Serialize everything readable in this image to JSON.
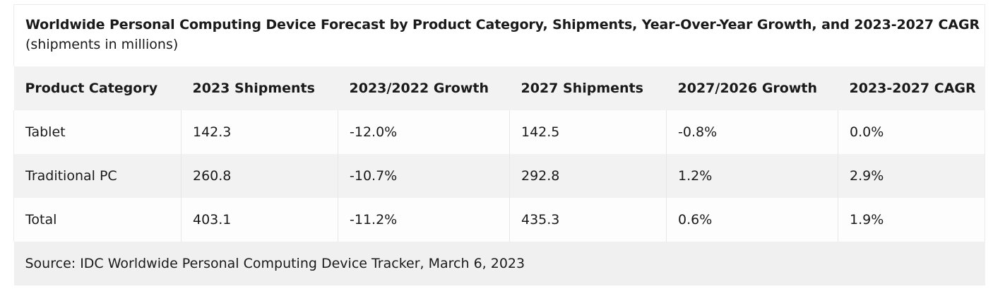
{
  "table": {
    "title": "Worldwide Personal Computing Device Forecast by Product Category, Shipments, Year-Over-Year Growth, and 2023-2027 CAGR",
    "subtitle": "(shipments in millions)",
    "headers": [
      "Product Category",
      "2023 Shipments",
      "2023/2022 Growth",
      "2027 Shipments",
      "2027/2026 Growth",
      "2023-2027 CAGR"
    ],
    "rows": [
      [
        "Tablet",
        "142.3",
        "-12.0%",
        "142.5",
        "-0.8%",
        "0.0%"
      ],
      [
        "Traditional PC",
        "260.8",
        "-10.7%",
        "292.8",
        "1.2%",
        "2.9%"
      ],
      [
        "Total",
        "403.1",
        "-11.2%",
        "435.3",
        "0.6%",
        "1.9%"
      ]
    ],
    "source": "Source: IDC Worldwide Personal Computing Device Tracker, March 6, 2023"
  }
}
